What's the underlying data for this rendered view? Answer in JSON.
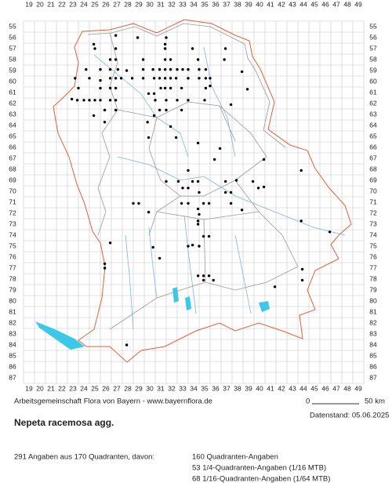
{
  "map": {
    "columns": [
      19,
      20,
      21,
      22,
      23,
      24,
      25,
      26,
      27,
      28,
      29,
      30,
      31,
      32,
      33,
      34,
      35,
      36,
      37,
      38,
      39,
      40,
      41,
      42,
      43,
      44,
      45,
      46,
      47,
      48,
      49
    ],
    "rows": [
      55,
      56,
      57,
      58,
      59,
      60,
      61,
      62,
      63,
      64,
      65,
      66,
      67,
      68,
      69,
      70,
      71,
      72,
      73,
      74,
      75,
      76,
      77,
      78,
      79,
      80,
      81,
      82,
      83,
      84,
      85,
      86,
      87
    ],
    "dots": [
      [
        24.9,
        56.6
      ],
      [
        26.9,
        55.8
      ],
      [
        28.9,
        56.0
      ],
      [
        31.5,
        56.0
      ],
      [
        31.4,
        56.6
      ],
      [
        25.0,
        57.0
      ],
      [
        26.9,
        57.0
      ],
      [
        31.4,
        57.0
      ],
      [
        33.9,
        57.0
      ],
      [
        36.9,
        57.0
      ],
      [
        26.4,
        58.0
      ],
      [
        26.9,
        58.0
      ],
      [
        29.4,
        58.0
      ],
      [
        31.4,
        58.0
      ],
      [
        31.9,
        58.0
      ],
      [
        34.4,
        58.0
      ],
      [
        36.8,
        58.0
      ],
      [
        24.2,
        58.9
      ],
      [
        25.5,
        58.9
      ],
      [
        26.4,
        58.9
      ],
      [
        27.1,
        58.9
      ],
      [
        27.9,
        59.0
      ],
      [
        29.4,
        58.9
      ],
      [
        30.3,
        58.9
      ],
      [
        30.9,
        58.9
      ],
      [
        31.4,
        58.9
      ],
      [
        31.9,
        58.9
      ],
      [
        32.5,
        58.9
      ],
      [
        33.0,
        58.9
      ],
      [
        33.5,
        58.9
      ],
      [
        34.5,
        58.9
      ],
      [
        35.1,
        58.9
      ],
      [
        38.4,
        59.1
      ],
      [
        23.2,
        59.7
      ],
      [
        24.5,
        59.7
      ],
      [
        25.5,
        59.9
      ],
      [
        26.4,
        59.7
      ],
      [
        26.9,
        59.7
      ],
      [
        27.4,
        59.7
      ],
      [
        28.4,
        59.7
      ],
      [
        29.4,
        59.7
      ],
      [
        30.4,
        59.7
      ],
      [
        30.9,
        59.7
      ],
      [
        31.4,
        59.7
      ],
      [
        31.9,
        59.7
      ],
      [
        32.4,
        59.7
      ],
      [
        33.5,
        59.7
      ],
      [
        34.5,
        59.7
      ],
      [
        35.1,
        59.7
      ],
      [
        35.5,
        59.7
      ],
      [
        23.5,
        60.6
      ],
      [
        25.5,
        60.6
      ],
      [
        26.4,
        60.6
      ],
      [
        26.9,
        60.6
      ],
      [
        29.9,
        61.1
      ],
      [
        30.4,
        61.1
      ],
      [
        31.0,
        60.6
      ],
      [
        31.4,
        60.6
      ],
      [
        31.9,
        60.6
      ],
      [
        32.9,
        60.6
      ],
      [
        35.1,
        60.6
      ],
      [
        35.5,
        60.4
      ],
      [
        38.9,
        60.7
      ],
      [
        22.9,
        61.6
      ],
      [
        23.4,
        61.7
      ],
      [
        24.0,
        61.7
      ],
      [
        24.5,
        61.7
      ],
      [
        25.0,
        61.7
      ],
      [
        25.5,
        61.7
      ],
      [
        26.4,
        61.7
      ],
      [
        26.9,
        61.7
      ],
      [
        30.5,
        61.7
      ],
      [
        31.5,
        61.7
      ],
      [
        32.5,
        61.7
      ],
      [
        33.5,
        61.7
      ],
      [
        35.0,
        61.7
      ],
      [
        37.4,
        62.1
      ],
      [
        25.9,
        62.6
      ],
      [
        26.9,
        62.6
      ],
      [
        30.4,
        63.1
      ],
      [
        30.9,
        62.6
      ],
      [
        31.5,
        62.6
      ],
      [
        32.9,
        62.6
      ],
      [
        24.9,
        63.1
      ],
      [
        25.9,
        63.7
      ],
      [
        29.8,
        63.7
      ],
      [
        31.9,
        64.1
      ],
      [
        29.9,
        65.1
      ],
      [
        32.4,
        65.1
      ],
      [
        34.4,
        65.6
      ],
      [
        36.4,
        66.1
      ],
      [
        35.9,
        67.1
      ],
      [
        40.4,
        67.1
      ],
      [
        33.5,
        68.1
      ],
      [
        43.8,
        68.1
      ],
      [
        31.5,
        69.1
      ],
      [
        32.6,
        69.1
      ],
      [
        33.9,
        69.1
      ],
      [
        34.4,
        69.1
      ],
      [
        36.9,
        69.1
      ],
      [
        37.9,
        69.0
      ],
      [
        39.4,
        69.1
      ],
      [
        33.0,
        69.7
      ],
      [
        33.5,
        69.7
      ],
      [
        34.5,
        70.1
      ],
      [
        36.9,
        70.1
      ],
      [
        37.4,
        70.1
      ],
      [
        39.9,
        69.7
      ],
      [
        40.4,
        69.6
      ],
      [
        28.5,
        71.1
      ],
      [
        29.0,
        71.1
      ],
      [
        32.9,
        71.1
      ],
      [
        33.5,
        71.1
      ],
      [
        34.9,
        71.1
      ],
      [
        35.4,
        71.1
      ],
      [
        37.4,
        71.1
      ],
      [
        29.9,
        71.9
      ],
      [
        34.4,
        71.6
      ],
      [
        34.5,
        72.1
      ],
      [
        38.4,
        71.7
      ],
      [
        34.4,
        73.0
      ],
      [
        34.4,
        72.7
      ],
      [
        43.8,
        72.7
      ],
      [
        46.4,
        73.7
      ],
      [
        34.9,
        74.1
      ],
      [
        35.4,
        74.1
      ],
      [
        26.4,
        74.7
      ],
      [
        30.3,
        75.1
      ],
      [
        30.9,
        76.1
      ],
      [
        33.5,
        75.0
      ],
      [
        33.9,
        74.9
      ],
      [
        34.5,
        75.0
      ],
      [
        25.9,
        76.6
      ],
      [
        25.9,
        77.0
      ],
      [
        34.4,
        77.7
      ],
      [
        34.9,
        77.7
      ],
      [
        35.4,
        77.7
      ],
      [
        34.9,
        78.1
      ],
      [
        35.8,
        78.1
      ],
      [
        43.9,
        77.1
      ],
      [
        43.9,
        78.1
      ],
      [
        41.4,
        78.7
      ],
      [
        27.9,
        84.0
      ]
    ],
    "footer": "Arbeitsgemeinschaft Flora von Bayern - www.bayernflora.de",
    "scale_start": "0",
    "scale_end": "50 km",
    "date": "Datenstand: 05.06.2025",
    "title": "Nepeta racemosa agg.",
    "summary": "291 Angaben aus 170 Quadranten, davon:",
    "details": [
      "160 Quadranten-Angaben",
      "53 1/4-Quadranten-Angaben (1/16 MTB)",
      "68 1/16-Quadranten-Angaben (1/64 MTB)"
    ]
  }
}
